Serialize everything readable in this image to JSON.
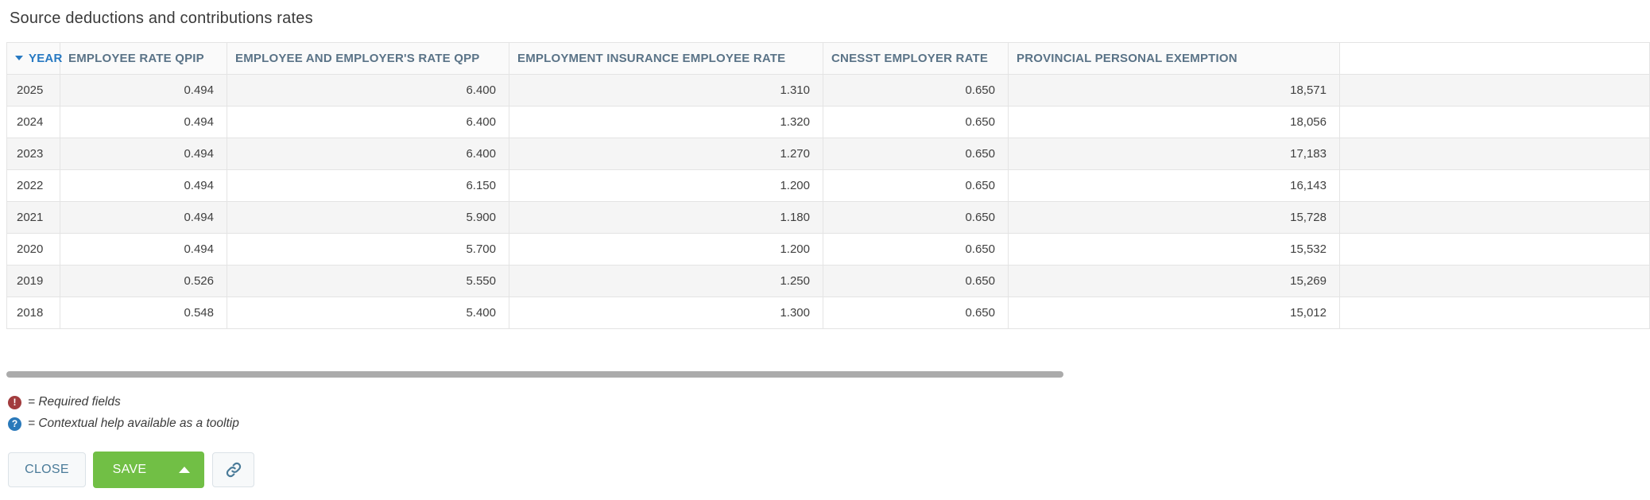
{
  "page": {
    "title": "Source deductions and contributions rates"
  },
  "table": {
    "columns": [
      {
        "key": "year",
        "label": "YEAR",
        "sorted": "desc"
      },
      {
        "key": "qpip",
        "label": "EMPLOYEE RATE QPIP"
      },
      {
        "key": "qpp",
        "label": "EMPLOYEE AND EMPLOYER'S RATE QPP"
      },
      {
        "key": "ei",
        "label": "EMPLOYMENT INSURANCE EMPLOYEE RATE"
      },
      {
        "key": "cnesst",
        "label": "CNESST EMPLOYER RATE"
      },
      {
        "key": "exemption",
        "label": "PROVINCIAL PERSONAL EXEMPTION"
      }
    ],
    "rows": [
      {
        "year": "2025",
        "qpip": "0.494",
        "qpp": "6.400",
        "ei": "1.310",
        "cnesst": "0.650",
        "exemption": "18,571"
      },
      {
        "year": "2024",
        "qpip": "0.494",
        "qpp": "6.400",
        "ei": "1.320",
        "cnesst": "0.650",
        "exemption": "18,056"
      },
      {
        "year": "2023",
        "qpip": "0.494",
        "qpp": "6.400",
        "ei": "1.270",
        "cnesst": "0.650",
        "exemption": "17,183"
      },
      {
        "year": "2022",
        "qpip": "0.494",
        "qpp": "6.150",
        "ei": "1.200",
        "cnesst": "0.650",
        "exemption": "16,143"
      },
      {
        "year": "2021",
        "qpip": "0.494",
        "qpp": "5.900",
        "ei": "1.180",
        "cnesst": "0.650",
        "exemption": "15,728"
      },
      {
        "year": "2020",
        "qpip": "0.494",
        "qpp": "5.700",
        "ei": "1.200",
        "cnesst": "0.650",
        "exemption": "15,532"
      },
      {
        "year": "2019",
        "qpip": "0.526",
        "qpp": "5.550",
        "ei": "1.250",
        "cnesst": "0.650",
        "exemption": "15,269"
      },
      {
        "year": "2018",
        "qpip": "0.548",
        "qpp": "5.400",
        "ei": "1.300",
        "cnesst": "0.650",
        "exemption": "15,012"
      }
    ]
  },
  "legend": {
    "required_icon_glyph": "!",
    "required_text": "= Required fields",
    "help_icon_glyph": "?",
    "help_text": "= Contextual help available as a tooltip"
  },
  "buttons": {
    "close": "CLOSE",
    "save": "SAVE"
  },
  "icons": {
    "sort": "sort-descending-caret",
    "save_menu": "chevron-up",
    "link": "link-chain"
  },
  "colors": {
    "accent_green": "#71bf45",
    "steel_blue": "#4a7b99",
    "required_red": "#a23c3e",
    "help_blue": "#2a79ba",
    "sorted_header_blue": "#2779c2",
    "row_stripe": "#f5f5f5"
  }
}
